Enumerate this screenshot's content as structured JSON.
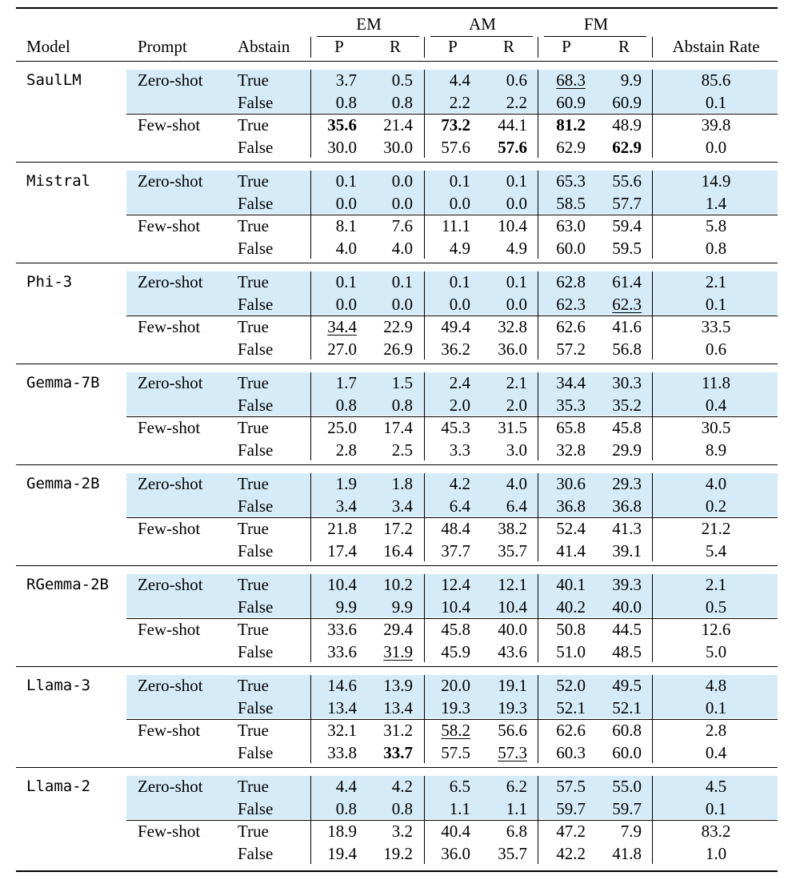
{
  "header": {
    "groups": [
      "EM",
      "AM",
      "FM"
    ],
    "model": "Model",
    "prompt": "Prompt",
    "abstain": "Abstain",
    "sub": [
      "P",
      "R",
      "P",
      "R",
      "P",
      "R"
    ],
    "abstain_rate": "Abstain Rate"
  },
  "models": [
    {
      "name": "SaulLM",
      "prompts": [
        {
          "label": "Zero-shot",
          "rows": [
            {
              "abstain": "True",
              "vals": [
                "3.7",
                "0.5",
                "4.4",
                "0.6",
                "68.3",
                "9.9",
                "85.6"
              ],
              "bold": [],
              "underline": [
                4
              ]
            },
            {
              "abstain": "False",
              "vals": [
                "0.8",
                "0.8",
                "2.2",
                "2.2",
                "60.9",
                "60.9",
                "0.1"
              ],
              "bold": [],
              "underline": []
            }
          ]
        },
        {
          "label": "Few-shot",
          "rows": [
            {
              "abstain": "True",
              "vals": [
                "35.6",
                "21.4",
                "73.2",
                "44.1",
                "81.2",
                "48.9",
                "39.8"
              ],
              "bold": [
                0,
                2,
                4
              ],
              "underline": []
            },
            {
              "abstain": "False",
              "vals": [
                "30.0",
                "30.0",
                "57.6",
                "57.6",
                "62.9",
                "62.9",
                "0.0"
              ],
              "bold": [
                3,
                5
              ],
              "underline": []
            }
          ]
        }
      ]
    },
    {
      "name": "Mistral",
      "prompts": [
        {
          "label": "Zero-shot",
          "rows": [
            {
              "abstain": "True",
              "vals": [
                "0.1",
                "0.0",
                "0.1",
                "0.1",
                "65.3",
                "55.6",
                "14.9"
              ],
              "bold": [],
              "underline": []
            },
            {
              "abstain": "False",
              "vals": [
                "0.0",
                "0.0",
                "0.0",
                "0.0",
                "58.5",
                "57.7",
                "1.4"
              ],
              "bold": [],
              "underline": []
            }
          ]
        },
        {
          "label": "Few-shot",
          "rows": [
            {
              "abstain": "True",
              "vals": [
                "8.1",
                "7.6",
                "11.1",
                "10.4",
                "63.0",
                "59.4",
                "5.8"
              ],
              "bold": [],
              "underline": []
            },
            {
              "abstain": "False",
              "vals": [
                "4.0",
                "4.0",
                "4.9",
                "4.9",
                "60.0",
                "59.5",
                "0.8"
              ],
              "bold": [],
              "underline": []
            }
          ]
        }
      ]
    },
    {
      "name": "Phi-3",
      "prompts": [
        {
          "label": "Zero-shot",
          "rows": [
            {
              "abstain": "True",
              "vals": [
                "0.1",
                "0.1",
                "0.1",
                "0.1",
                "62.8",
                "61.4",
                "2.1"
              ],
              "bold": [],
              "underline": []
            },
            {
              "abstain": "False",
              "vals": [
                "0.0",
                "0.0",
                "0.0",
                "0.0",
                "62.3",
                "62.3",
                "0.1"
              ],
              "bold": [],
              "underline": [
                5
              ]
            }
          ]
        },
        {
          "label": "Few-shot",
          "rows": [
            {
              "abstain": "True",
              "vals": [
                "34.4",
                "22.9",
                "49.4",
                "32.8",
                "62.6",
                "41.6",
                "33.5"
              ],
              "bold": [],
              "underline": [
                0
              ]
            },
            {
              "abstain": "False",
              "vals": [
                "27.0",
                "26.9",
                "36.2",
                "36.0",
                "57.2",
                "56.8",
                "0.6"
              ],
              "bold": [],
              "underline": []
            }
          ]
        }
      ]
    },
    {
      "name": "Gemma-7B",
      "prompts": [
        {
          "label": "Zero-shot",
          "rows": [
            {
              "abstain": "True",
              "vals": [
                "1.7",
                "1.5",
                "2.4",
                "2.1",
                "34.4",
                "30.3",
                "11.8"
              ],
              "bold": [],
              "underline": []
            },
            {
              "abstain": "False",
              "vals": [
                "0.8",
                "0.8",
                "2.0",
                "2.0",
                "35.3",
                "35.2",
                "0.4"
              ],
              "bold": [],
              "underline": []
            }
          ]
        },
        {
          "label": "Few-shot",
          "rows": [
            {
              "abstain": "True",
              "vals": [
                "25.0",
                "17.4",
                "45.3",
                "31.5",
                "65.8",
                "45.8",
                "30.5"
              ],
              "bold": [],
              "underline": []
            },
            {
              "abstain": "False",
              "vals": [
                "2.8",
                "2.5",
                "3.3",
                "3.0",
                "32.8",
                "29.9",
                "8.9"
              ],
              "bold": [],
              "underline": []
            }
          ]
        }
      ]
    },
    {
      "name": "Gemma-2B",
      "prompts": [
        {
          "label": "Zero-shot",
          "rows": [
            {
              "abstain": "True",
              "vals": [
                "1.9",
                "1.8",
                "4.2",
                "4.0",
                "30.6",
                "29.3",
                "4.0"
              ],
              "bold": [],
              "underline": []
            },
            {
              "abstain": "False",
              "vals": [
                "3.4",
                "3.4",
                "6.4",
                "6.4",
                "36.8",
                "36.8",
                "0.2"
              ],
              "bold": [],
              "underline": []
            }
          ]
        },
        {
          "label": "Few-shot",
          "rows": [
            {
              "abstain": "True",
              "vals": [
                "21.8",
                "17.2",
                "48.4",
                "38.2",
                "52.4",
                "41.3",
                "21.2"
              ],
              "bold": [],
              "underline": []
            },
            {
              "abstain": "False",
              "vals": [
                "17.4",
                "16.4",
                "37.7",
                "35.7",
                "41.4",
                "39.1",
                "5.4"
              ],
              "bold": [],
              "underline": []
            }
          ]
        }
      ]
    },
    {
      "name": "RGemma-2B",
      "prompts": [
        {
          "label": "Zero-shot",
          "rows": [
            {
              "abstain": "True",
              "vals": [
                "10.4",
                "10.2",
                "12.4",
                "12.1",
                "40.1",
                "39.3",
                "2.1"
              ],
              "bold": [],
              "underline": []
            },
            {
              "abstain": "False",
              "vals": [
                "9.9",
                "9.9",
                "10.4",
                "10.4",
                "40.2",
                "40.0",
                "0.5"
              ],
              "bold": [],
              "underline": []
            }
          ]
        },
        {
          "label": "Few-shot",
          "rows": [
            {
              "abstain": "True",
              "vals": [
                "33.6",
                "29.4",
                "45.8",
                "40.0",
                "50.8",
                "44.5",
                "12.6"
              ],
              "bold": [],
              "underline": []
            },
            {
              "abstain": "False",
              "vals": [
                "33.6",
                "31.9",
                "45.9",
                "43.6",
                "51.0",
                "48.5",
                "5.0"
              ],
              "bold": [],
              "underline": [
                1
              ]
            }
          ]
        }
      ]
    },
    {
      "name": "Llama-3",
      "prompts": [
        {
          "label": "Zero-shot",
          "rows": [
            {
              "abstain": "True",
              "vals": [
                "14.6",
                "13.9",
                "20.0",
                "19.1",
                "52.0",
                "49.5",
                "4.8"
              ],
              "bold": [],
              "underline": []
            },
            {
              "abstain": "False",
              "vals": [
                "13.4",
                "13.4",
                "19.3",
                "19.3",
                "52.1",
                "52.1",
                "0.1"
              ],
              "bold": [],
              "underline": []
            }
          ]
        },
        {
          "label": "Few-shot",
          "rows": [
            {
              "abstain": "True",
              "vals": [
                "32.1",
                "31.2",
                "58.2",
                "56.6",
                "62.6",
                "60.8",
                "2.8"
              ],
              "bold": [],
              "underline": [
                2
              ]
            },
            {
              "abstain": "False",
              "vals": [
                "33.8",
                "33.7",
                "57.5",
                "57.3",
                "60.3",
                "60.0",
                "0.4"
              ],
              "bold": [
                1
              ],
              "underline": [
                3
              ]
            }
          ]
        }
      ]
    },
    {
      "name": "Llama-2",
      "prompts": [
        {
          "label": "Zero-shot",
          "rows": [
            {
              "abstain": "True",
              "vals": [
                "4.4",
                "4.2",
                "6.5",
                "6.2",
                "57.5",
                "55.0",
                "4.5"
              ],
              "bold": [],
              "underline": []
            },
            {
              "abstain": "False",
              "vals": [
                "0.8",
                "0.8",
                "1.1",
                "1.1",
                "59.7",
                "59.7",
                "0.1"
              ],
              "bold": [],
              "underline": []
            }
          ]
        },
        {
          "label": "Few-shot",
          "rows": [
            {
              "abstain": "True",
              "vals": [
                "18.9",
                "3.2",
                "40.4",
                "6.8",
                "47.2",
                "7.9",
                "83.2"
              ],
              "bold": [],
              "underline": []
            },
            {
              "abstain": "False",
              "vals": [
                "19.4",
                "19.2",
                "36.0",
                "35.7",
                "42.2",
                "41.8",
                "1.0"
              ],
              "bold": [],
              "underline": []
            }
          ]
        }
      ]
    }
  ]
}
